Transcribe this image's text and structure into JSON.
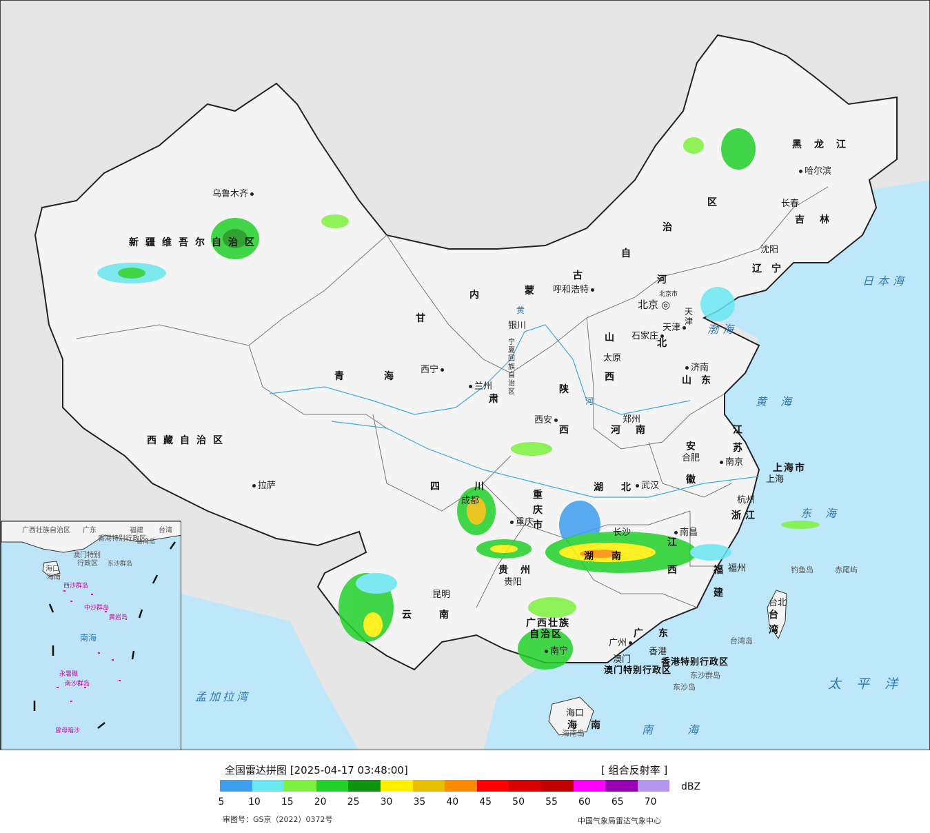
{
  "map": {
    "provinces": [
      {
        "name": "新疆维吾尔自治区",
        "key": "xinjiang"
      },
      {
        "name": "西藏自治区",
        "key": "xizang"
      },
      {
        "name": "青",
        "key": "qinghai1"
      },
      {
        "name": "海",
        "key": "qinghai2"
      },
      {
        "name": "甘",
        "key": "gansu1"
      },
      {
        "name": "肃",
        "key": "gansu2"
      },
      {
        "name": "内",
        "key": "nm1"
      },
      {
        "name": "蒙",
        "key": "nm2"
      },
      {
        "name": "古",
        "key": "nm3"
      },
      {
        "name": "自",
        "key": "nm4"
      },
      {
        "name": "治",
        "key": "nm5"
      },
      {
        "name": "区",
        "key": "nm6"
      },
      {
        "name": "黑龙江",
        "key": "heilongjiang"
      },
      {
        "name": "吉林",
        "key": "jilin"
      },
      {
        "name": "辽宁",
        "key": "liaoning"
      },
      {
        "name": "河",
        "key": "hebei1"
      },
      {
        "name": "北",
        "key": "hebei2"
      },
      {
        "name": "山",
        "key": "shanxi1"
      },
      {
        "name": "西",
        "key": "shanxi2"
      },
      {
        "name": "陕",
        "key": "shaanxi1"
      },
      {
        "name": "西",
        "key": "shaanxi2"
      },
      {
        "name": "宁夏回族自治区",
        "key": "ningxia"
      },
      {
        "name": "山东",
        "key": "shandong"
      },
      {
        "name": "河南",
        "key": "henan"
      },
      {
        "name": "江",
        "key": "jiangsu1"
      },
      {
        "name": "苏",
        "key": "jiangsu2"
      },
      {
        "name": "安",
        "key": "anhui1"
      },
      {
        "name": "徽",
        "key": "anhui2"
      },
      {
        "name": "上海市",
        "key": "shanghai"
      },
      {
        "name": "浙江",
        "key": "zhejiang"
      },
      {
        "name": "四川",
        "key": "sichuan"
      },
      {
        "name": "重庆市",
        "key": "chongqing"
      },
      {
        "name": "湖北",
        "key": "hubei"
      },
      {
        "name": "湖南",
        "key": "hunan"
      },
      {
        "name": "江",
        "key": "jiangxi1"
      },
      {
        "name": "西",
        "key": "jiangxi2"
      },
      {
        "name": "福",
        "key": "fujian1"
      },
      {
        "name": "建",
        "key": "fujian2"
      },
      {
        "name": "贵州",
        "key": "guizhou"
      },
      {
        "name": "云",
        "key": "yunnan1"
      },
      {
        "name": "南",
        "key": "yunnan2"
      },
      {
        "name": "广西壮族",
        "key": "guangxi1"
      },
      {
        "name": "自治区",
        "key": "guangxi2"
      },
      {
        "name": "广东",
        "key": "guangdong"
      },
      {
        "name": "台湾",
        "key": "taiwan"
      },
      {
        "name": "海南",
        "key": "hainan"
      },
      {
        "name": "香港特别行政区",
        "key": "hk"
      },
      {
        "name": "澳门特别行政区",
        "key": "macao"
      },
      {
        "name": "天津",
        "key": "tianjin"
      }
    ],
    "cities": [
      {
        "name": "乌鲁木齐",
        "key": "urumqi"
      },
      {
        "name": "拉萨",
        "key": "lasa"
      },
      {
        "name": "西宁",
        "key": "xining"
      },
      {
        "name": "兰州",
        "key": "lanzhou"
      },
      {
        "name": "银川",
        "key": "yinchuan"
      },
      {
        "name": "呼和浩特",
        "key": "hohhot"
      },
      {
        "name": "北京",
        "key": "beijing"
      },
      {
        "name": "北京市",
        "key": "beijing_small"
      },
      {
        "name": "天津",
        "key": "tianjin_city"
      },
      {
        "name": "石家庄",
        "key": "shijiazhuang"
      },
      {
        "name": "太原",
        "key": "taiyuan"
      },
      {
        "name": "济南",
        "key": "jinan"
      },
      {
        "name": "郑州",
        "key": "zhengzhou"
      },
      {
        "name": "西安",
        "key": "xian"
      },
      {
        "name": "合肥",
        "key": "hefei"
      },
      {
        "name": "南京",
        "key": "nanjing"
      },
      {
        "name": "上海",
        "key": "shanghai_city"
      },
      {
        "name": "杭州",
        "key": "hangzhou"
      },
      {
        "name": "武汉",
        "key": "wuhan"
      },
      {
        "name": "成都",
        "key": "chengdu"
      },
      {
        "name": "重庆",
        "key": "chongqing_city"
      },
      {
        "name": "长沙",
        "key": "changsha"
      },
      {
        "name": "南昌",
        "key": "nanchang"
      },
      {
        "name": "福州",
        "key": "fuzhou"
      },
      {
        "name": "贵阳",
        "key": "guiyang"
      },
      {
        "name": "昆明",
        "key": "kunming"
      },
      {
        "name": "南宁",
        "key": "nanning"
      },
      {
        "name": "广州",
        "key": "guangzhou"
      },
      {
        "name": "香港",
        "key": "hongkong"
      },
      {
        "name": "澳门",
        "key": "macau"
      },
      {
        "name": "海口",
        "key": "haikou"
      },
      {
        "name": "台北",
        "key": "taibei"
      },
      {
        "name": "哈尔滨",
        "key": "harbin"
      },
      {
        "name": "长春",
        "key": "changchun"
      },
      {
        "name": "沈阳",
        "key": "shenyang"
      }
    ],
    "seas": [
      {
        "name": "日本海",
        "key": "japansea"
      },
      {
        "name": "渤海",
        "key": "bohai"
      },
      {
        "name": "黄海",
        "key": "huanghai"
      },
      {
        "name": "东海",
        "key": "donghai"
      },
      {
        "name": "太平洋",
        "key": "pacific"
      },
      {
        "name": "南海",
        "key": "nanhai"
      },
      {
        "name": "孟加拉湾",
        "key": "bengal"
      }
    ],
    "islands": [
      {
        "name": "钓鱼岛",
        "key": "diaoyu"
      },
      {
        "name": "赤尾屿",
        "key": "chiwei"
      },
      {
        "name": "台湾岛",
        "key": "taiwandao"
      },
      {
        "name": "东沙群岛",
        "key": "dongshaqd"
      },
      {
        "name": "东沙岛",
        "key": "dongsha"
      },
      {
        "name": "海南岛",
        "key": "hainandao"
      }
    ],
    "rivers": [
      {
        "name": "黄",
        "key": "huang"
      },
      {
        "name": "河",
        "key": "he"
      }
    ],
    "inset": {
      "labels": [
        "广西壮族自治区",
        "广东",
        "福建",
        "台湾",
        "香港特别行政区",
        "澳门特别",
        "行政区",
        "海口",
        "海南",
        "南海",
        "西沙群岛",
        "中沙群岛",
        "黄岩岛",
        "南沙群岛",
        "曾母暗沙",
        "永暑礁",
        "东沙群岛",
        "台湾岛"
      ]
    }
  },
  "legend": {
    "title": "全国雷达拼图 [2025-04-17 03:48:00]",
    "product": "[ 组合反射率 ]",
    "unit": "dBZ",
    "colors": [
      "#3d9ff0",
      "#6ae6f0",
      "#7cf23c",
      "#22d12a",
      "#109410",
      "#fff000",
      "#e8be00",
      "#ff8c00",
      "#ff0000",
      "#d90000",
      "#c00000",
      "#ff00ff",
      "#9900b5",
      "#b496f0"
    ],
    "ticks": [
      "5",
      "10",
      "15",
      "20",
      "25",
      "30",
      "35",
      "40",
      "45",
      "50",
      "55",
      "60",
      "65",
      "70"
    ],
    "approval": "审图号：GS京（2022）0372号",
    "source": "中国气象局雷达气象中心"
  }
}
